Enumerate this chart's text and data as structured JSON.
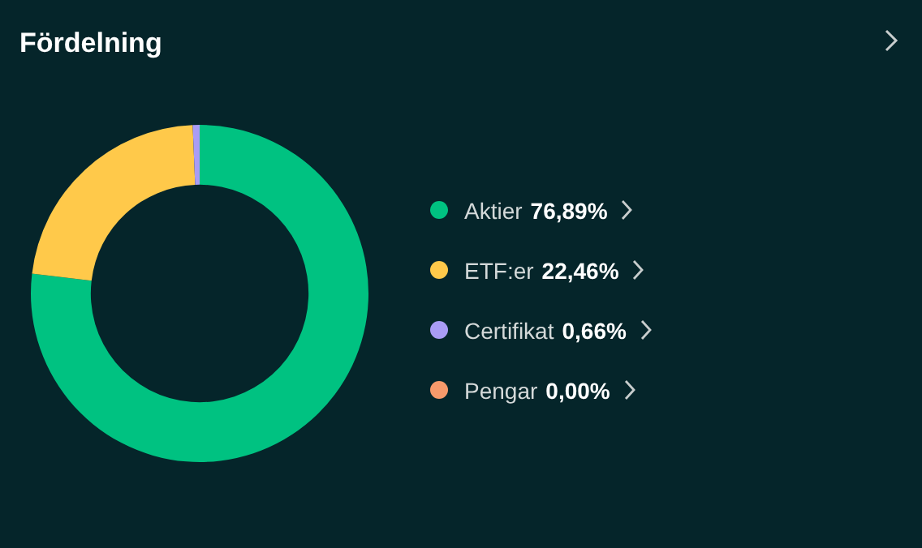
{
  "chart_data": {
    "type": "donut",
    "title": "Fördelning",
    "categories": [
      "Aktier",
      "ETF:er",
      "Certifikat",
      "Pengar"
    ],
    "values": [
      76.89,
      22.46,
      0.66,
      0.0
    ],
    "value_labels": [
      "76,89%",
      "22,46%",
      "0,66%",
      "0,00%"
    ],
    "colors": [
      "#00c281",
      "#ffc94a",
      "#a99cf5",
      "#f79a6b"
    ],
    "legend": "right"
  }
}
